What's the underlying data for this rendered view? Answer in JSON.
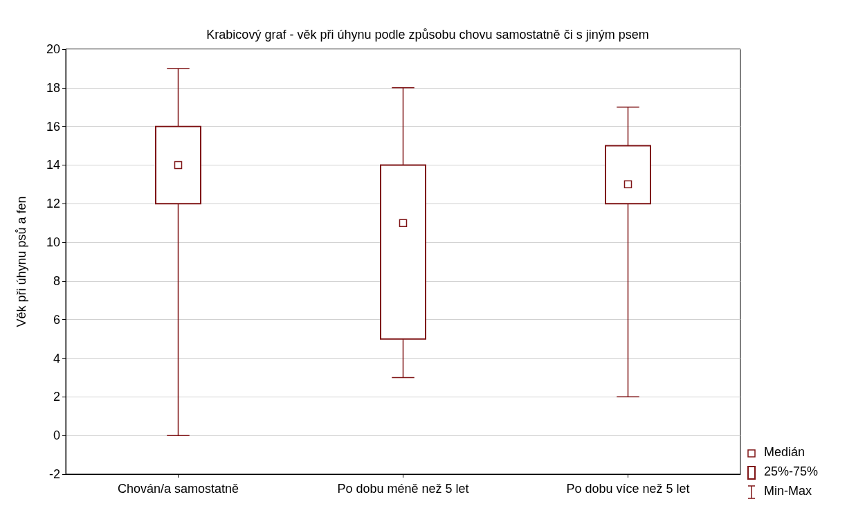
{
  "chart_data": {
    "type": "box",
    "title": "Krabicový graf - věk při úhynu podle způsobu chovu samostatně či s jiným psem",
    "ylabel": "Věk při úhynu psů a fen",
    "categories": [
      "Chován/a samostatně",
      "Po dobu méně než 5 let",
      "Po dobu více než 5 let"
    ],
    "boxes": [
      {
        "low": 0,
        "q1": 12,
        "median": 14,
        "q3": 16,
        "high": 19
      },
      {
        "low": 3,
        "q1": 5,
        "median": 11,
        "q3": 14,
        "high": 18
      },
      {
        "low": 2,
        "q1": 12,
        "median": 13,
        "q3": 15,
        "high": 17
      }
    ],
    "color": "#7f1416",
    "marker": "square",
    "annotations": [
      "Medián",
      "25%-75%",
      "Min-Max"
    ],
    "ylim": [
      -2,
      20
    ],
    "yticks": [
      -2,
      0,
      2,
      4,
      6,
      8,
      10,
      12,
      14,
      16,
      18,
      20
    ],
    "grid": "y"
  }
}
